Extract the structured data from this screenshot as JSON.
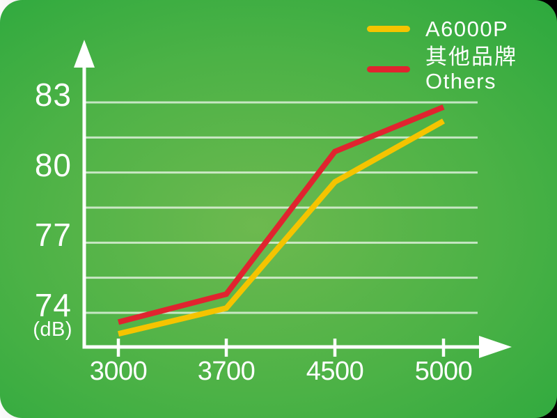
{
  "chart_data": {
    "type": "line",
    "title": "",
    "x_categories": [
      "3000",
      "3700",
      "4500",
      "5000"
    ],
    "y_ticks": [
      83,
      80,
      77,
      74
    ],
    "y_unit_label": "(dB)",
    "ylim": [
      72.5,
      84
    ],
    "gridline_values": [
      83,
      81.5,
      80,
      78.5,
      77,
      75.5,
      74
    ],
    "grid": true,
    "legend_position": "top-right",
    "series": [
      {
        "name": "A6000P",
        "color": "#f5c400",
        "values": [
          73.1,
          74.2,
          79.6,
          82.2
        ]
      },
      {
        "name": "其他品牌 Others",
        "name_zh": "其他品牌",
        "name_en": "Others",
        "color": "#e0242f",
        "values": [
          73.6,
          74.8,
          80.9,
          82.8
        ]
      }
    ]
  },
  "colors": {
    "axis": "#ffffff",
    "text": "#ffffff",
    "gridline": "rgba(255,255,255,0.68)",
    "background_center": "#6db94f",
    "background_edge": "#24a139",
    "series_a6000p": "#f5c400",
    "series_others": "#e0242f"
  }
}
